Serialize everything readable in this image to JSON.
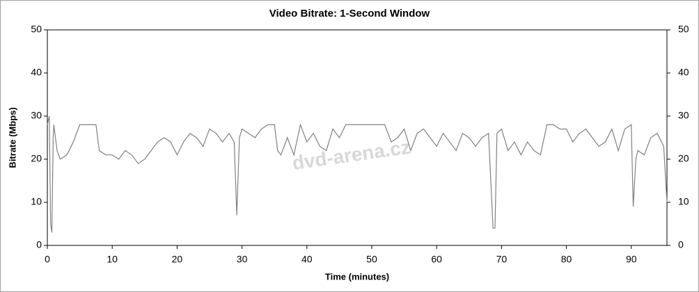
{
  "chart_data": {
    "type": "line",
    "title": "Video Bitrate: 1-Second Window",
    "x_label": "Time (minutes)",
    "y_label": "Bitrate (Mbps)",
    "watermark": "dvd-arena.cz",
    "xlim": [
      0,
      95.5
    ],
    "xticks": [
      0,
      10,
      20,
      30,
      40,
      50,
      60,
      70,
      80,
      90
    ],
    "ylim": [
      0,
      50
    ],
    "yticks": [
      0,
      10,
      20,
      30,
      40,
      50
    ],
    "y2lim": [
      0,
      50
    ],
    "y2ticks": [
      0,
      10,
      20,
      30,
      40,
      50
    ],
    "series": [
      {
        "name": "Bitrate",
        "color": "#808080",
        "x": [
          0,
          0.3,
          0.5,
          0.7,
          0.9,
          1,
          1.5,
          2,
          3,
          4,
          5,
          6,
          7,
          7.5,
          8,
          9,
          10,
          11,
          12,
          13,
          14,
          15,
          16,
          17,
          18,
          19,
          20,
          21,
          22,
          23,
          24,
          25,
          26,
          27,
          28,
          28.8,
          29.2,
          29.6,
          30,
          31,
          32,
          33,
          34,
          35,
          35.5,
          36,
          37,
          38,
          39,
          40,
          41,
          42,
          43,
          44,
          45,
          46,
          47,
          48,
          49,
          50,
          51,
          52,
          53,
          54,
          55,
          56,
          57,
          58,
          59,
          60,
          61,
          62,
          63,
          64,
          65,
          66,
          67,
          68,
          68.7,
          69,
          69.3,
          70,
          71,
          72,
          73,
          74,
          75,
          76,
          77,
          78,
          79,
          80,
          81,
          82,
          83,
          84,
          85,
          86,
          87,
          88,
          89,
          90,
          90.3,
          90.7,
          91,
          92,
          93,
          94,
          95,
          95.5
        ],
        "values": [
          28,
          30,
          5,
          3,
          25,
          28,
          22,
          20,
          21,
          24,
          28,
          28,
          28,
          28,
          22,
          21,
          21,
          20,
          22,
          21,
          19,
          20,
          22,
          24,
          25,
          24,
          21,
          24,
          26,
          25,
          23,
          27,
          26,
          24,
          26,
          24,
          7,
          25,
          27,
          26,
          25,
          27,
          28,
          28,
          22,
          21,
          25,
          21,
          28,
          24,
          26,
          23,
          22,
          27,
          25,
          28,
          28,
          28,
          28,
          28,
          28,
          28,
          24,
          25,
          27,
          22,
          26,
          27,
          25,
          23,
          26,
          24,
          22,
          26,
          25,
          23,
          25,
          26,
          4,
          4,
          26,
          27,
          22,
          24,
          21,
          24,
          22,
          21,
          28,
          28,
          27,
          27,
          24,
          26,
          27,
          25,
          23,
          24,
          27,
          22,
          27,
          28,
          9,
          20,
          22,
          21,
          25,
          26,
          23,
          10
        ]
      }
    ]
  }
}
